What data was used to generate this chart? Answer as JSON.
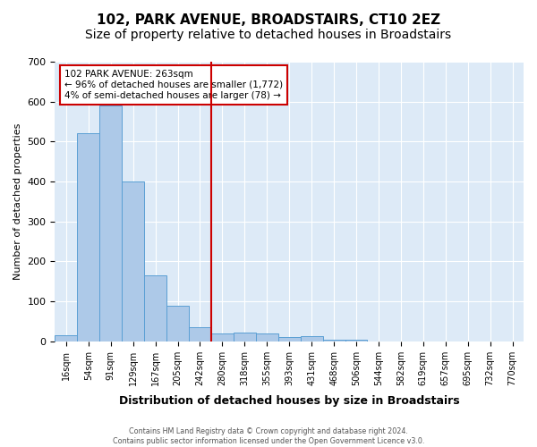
{
  "title": "102, PARK AVENUE, BROADSTAIRS, CT10 2EZ",
  "subtitle": "Size of property relative to detached houses in Broadstairs",
  "xlabel": "Distribution of detached houses by size in Broadstairs",
  "ylabel": "Number of detached properties",
  "bin_labels": [
    "16sqm",
    "54sqm",
    "91sqm",
    "129sqm",
    "167sqm",
    "205sqm",
    "242sqm",
    "280sqm",
    "318sqm",
    "355sqm",
    "393sqm",
    "431sqm",
    "468sqm",
    "506sqm",
    "544sqm",
    "582sqm",
    "619sqm",
    "657sqm",
    "695sqm",
    "732sqm",
    "770sqm"
  ],
  "bar_values": [
    15,
    520,
    590,
    400,
    165,
    88,
    35,
    20,
    22,
    20,
    10,
    13,
    4,
    5,
    0,
    0,
    0,
    0,
    0,
    0,
    0
  ],
  "bar_color": "#adc9e8",
  "bar_edge_color": "#5a9fd4",
  "vline_x": 6.5,
  "vline_color": "#cc0000",
  "annotation_line1": "102 PARK AVENUE: 263sqm",
  "annotation_line2": "← 96% of detached houses are smaller (1,772)",
  "annotation_line3": "4% of semi-detached houses are larger (78) →",
  "annotation_box_color": "#ffffff",
  "annotation_box_edge": "#cc0000",
  "footer_text": "Contains HM Land Registry data © Crown copyright and database right 2024.\nContains public sector information licensed under the Open Government Licence v3.0.",
  "ylim": [
    0,
    700
  ],
  "yticks": [
    0,
    100,
    200,
    300,
    400,
    500,
    600,
    700
  ],
  "background_color": "#ddeaf7",
  "plot_background": "#ffffff",
  "title_fontsize": 11,
  "subtitle_fontsize": 10
}
